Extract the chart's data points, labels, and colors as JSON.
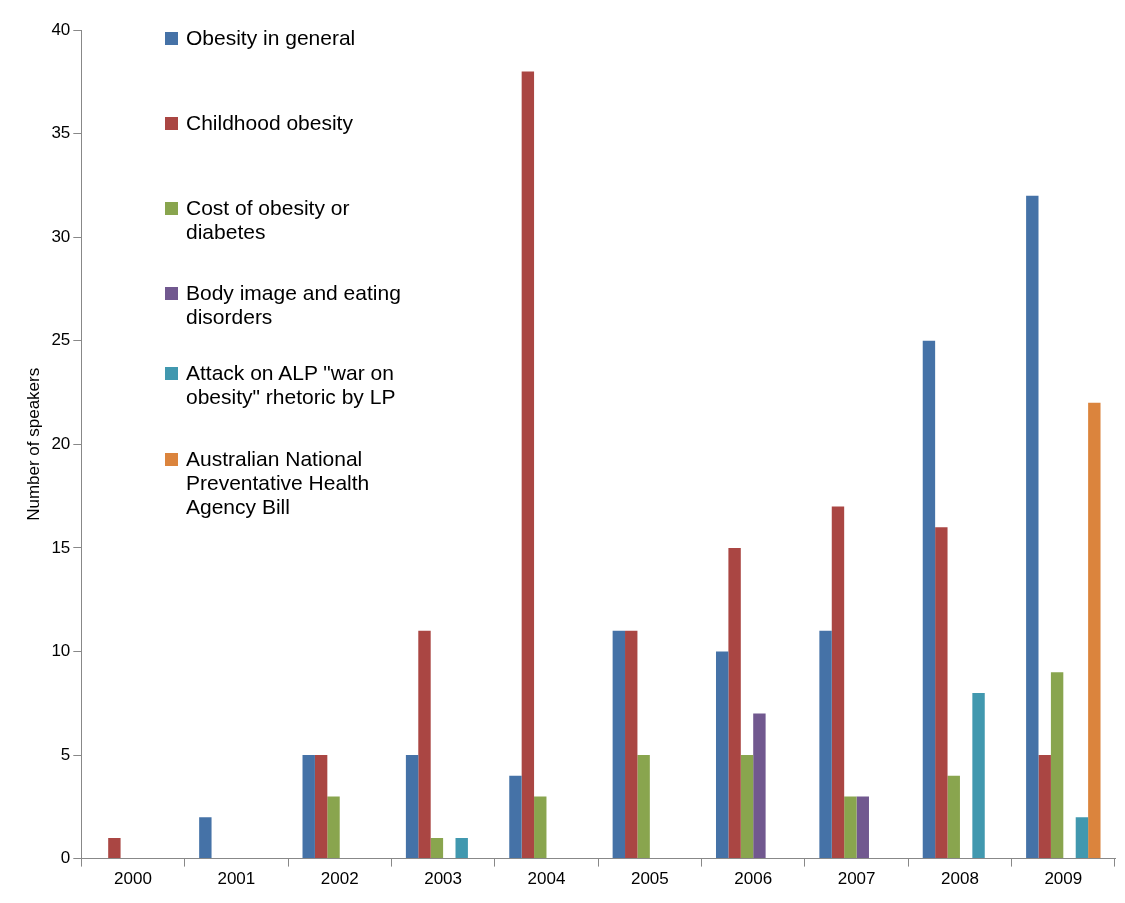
{
  "chart_data": {
    "type": "bar",
    "ylabel": "Number of speakers",
    "categories": [
      "2000",
      "2001",
      "2002",
      "2003",
      "2004",
      "2005",
      "2006",
      "2007",
      "2008",
      "2009"
    ],
    "series": [
      {
        "name": "Obesity in general",
        "color": "#4572a7",
        "values": [
          0,
          2,
          5,
          5,
          4,
          11,
          10,
          11,
          25,
          32
        ]
      },
      {
        "name": "Childhood obesity",
        "color": "#aa4643",
        "values": [
          1,
          0,
          5,
          11,
          38,
          11,
          15,
          17,
          16,
          5
        ]
      },
      {
        "name": "Cost of obesity or diabetes",
        "color": "#89a54e",
        "values": [
          0,
          0,
          3,
          1,
          3,
          5,
          5,
          3,
          4,
          9
        ]
      },
      {
        "name": "Body image and eating disorders",
        "color": "#71588f",
        "values": [
          0,
          0,
          0,
          0,
          0,
          0,
          7,
          3,
          0,
          0
        ]
      },
      {
        "name": "Attack on ALP \"war on obesity\" rhetoric by LP",
        "color": "#4198af",
        "values": [
          0,
          0,
          0,
          1,
          0,
          0,
          0,
          0,
          8,
          2
        ]
      },
      {
        "name": "Australian National Preventative Health Agency Bill",
        "color": "#db843d",
        "values": [
          0,
          0,
          0,
          0,
          0,
          0,
          0,
          0,
          0,
          22
        ]
      }
    ],
    "ylim": [
      0,
      40
    ],
    "yticks": [
      0,
      5,
      10,
      15,
      20,
      25,
      30,
      35,
      40
    ],
    "grid": false,
    "legend": "top left"
  }
}
